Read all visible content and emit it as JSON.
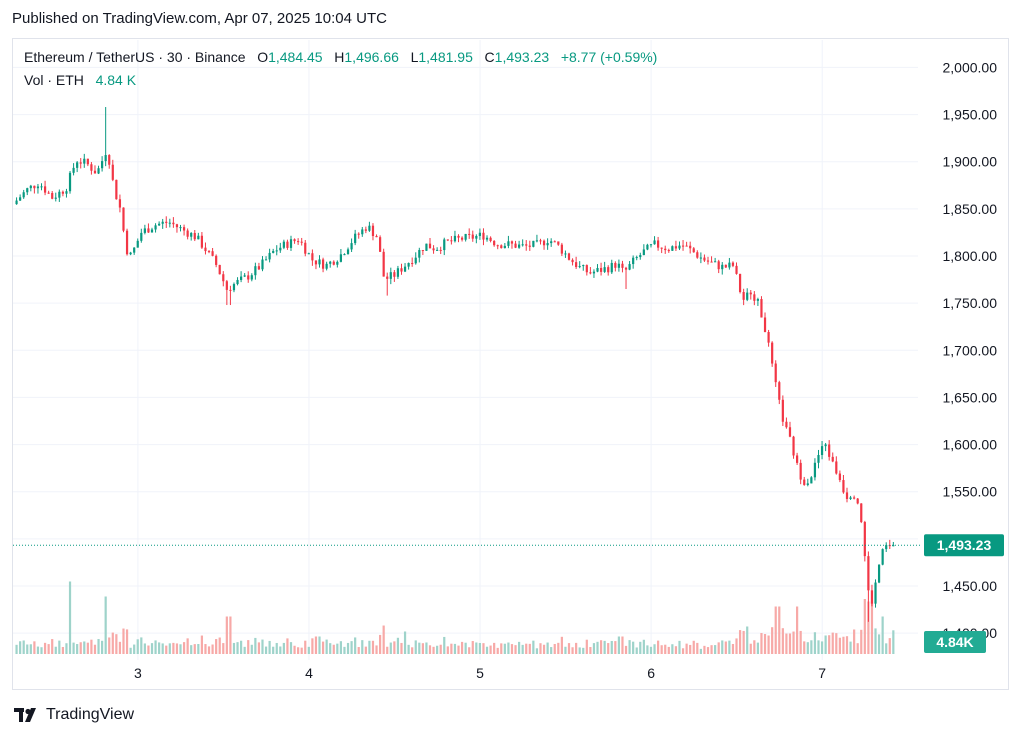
{
  "published": "Published on TradingView.com, Apr 07, 2025 10:04 UTC",
  "legend": {
    "symbol": "Ethereum / TetherUS · 30 · Binance",
    "o_label": "O",
    "o_value": "1,484.45",
    "h_label": "H",
    "h_value": "1,496.66",
    "l_label": "L",
    "l_value": "1,481.95",
    "c_label": "C",
    "c_value": "1,493.23",
    "change": "+8.77 (+0.59%)",
    "vol_label": "Vol · ETH",
    "vol_value": "4.84 K"
  },
  "footer": {
    "brand": "TradingView",
    "logo_icon": "tradingview-logo-icon"
  },
  "colors": {
    "up": "#089981",
    "down": "#f23645",
    "up_vol": "#9ed3ca",
    "down_vol": "#f7a9a7",
    "grid": "#f0f3fa",
    "text": "#131722"
  },
  "chart_data": {
    "type": "candlestick",
    "interval": "30",
    "y_ticks": [
      "2,000.00",
      "1,950.00",
      "1,900.00",
      "1,850.00",
      "1,800.00",
      "1,750.00",
      "1,700.00",
      "1,650.00",
      "1,600.00",
      "1,550.00",
      "1,500.00",
      "1,450.00",
      "1,400.00"
    ],
    "ylim": [
      1380,
      2010
    ],
    "x_ticks": [
      "3",
      "4",
      "5",
      "6",
      "7"
    ],
    "x_tick_day": [
      3,
      4,
      5,
      6,
      7
    ],
    "xlim_day": [
      2.27,
      7.56
    ],
    "last_price_label": "1,493.23",
    "last_price": 1493.23,
    "last_volume_label": "4.84K",
    "close_path": [
      [
        2.27,
        1855
      ],
      [
        2.35,
        1870
      ],
      [
        2.42,
        1878
      ],
      [
        2.5,
        1862
      ],
      [
        2.58,
        1872
      ],
      [
        2.64,
        1902
      ],
      [
        2.7,
        1898
      ],
      [
        2.76,
        1888
      ],
      [
        2.8,
        1905
      ],
      [
        2.82,
        1915
      ],
      [
        2.86,
        1872
      ],
      [
        2.9,
        1848
      ],
      [
        2.93,
        1808
      ],
      [
        2.96,
        1800
      ],
      [
        3.02,
        1825
      ],
      [
        3.1,
        1833
      ],
      [
        3.18,
        1836
      ],
      [
        3.26,
        1828
      ],
      [
        3.34,
        1820
      ],
      [
        3.4,
        1806
      ],
      [
        3.46,
        1790
      ],
      [
        3.52,
        1765
      ],
      [
        3.58,
        1772
      ],
      [
        3.64,
        1778
      ],
      [
        3.72,
        1790
      ],
      [
        3.8,
        1806
      ],
      [
        3.86,
        1812
      ],
      [
        3.94,
        1818
      ],
      [
        4.02,
        1796
      ],
      [
        4.1,
        1790
      ],
      [
        4.18,
        1800
      ],
      [
        4.26,
        1818
      ],
      [
        4.34,
        1832
      ],
      [
        4.4,
        1820
      ],
      [
        4.44,
        1775
      ],
      [
        4.5,
        1780
      ],
      [
        4.56,
        1790
      ],
      [
        4.62,
        1800
      ],
      [
        4.68,
        1812
      ],
      [
        4.74,
        1808
      ],
      [
        4.8,
        1814
      ],
      [
        4.88,
        1818
      ],
      [
        4.96,
        1820
      ],
      [
        5.02,
        1822
      ],
      [
        5.1,
        1813
      ],
      [
        5.18,
        1812
      ],
      [
        5.26,
        1810
      ],
      [
        5.34,
        1812
      ],
      [
        5.4,
        1818
      ],
      [
        5.46,
        1810
      ],
      [
        5.52,
        1798
      ],
      [
        5.58,
        1788
      ],
      [
        5.64,
        1782
      ],
      [
        5.7,
        1785
      ],
      [
        5.76,
        1788
      ],
      [
        5.8,
        1792
      ],
      [
        5.84,
        1782
      ],
      [
        5.9,
        1795
      ],
      [
        5.96,
        1805
      ],
      [
        6.02,
        1812
      ],
      [
        6.1,
        1808
      ],
      [
        6.18,
        1812
      ],
      [
        6.24,
        1805
      ],
      [
        6.3,
        1797
      ],
      [
        6.36,
        1792
      ],
      [
        6.42,
        1788
      ],
      [
        6.48,
        1790
      ],
      [
        6.54,
        1750
      ],
      [
        6.58,
        1765
      ],
      [
        6.62,
        1752
      ],
      [
        6.66,
        1730
      ],
      [
        6.7,
        1690
      ],
      [
        6.74,
        1650
      ],
      [
        6.78,
        1620
      ],
      [
        6.82,
        1600
      ],
      [
        6.86,
        1572
      ],
      [
        6.9,
        1560
      ],
      [
        6.94,
        1568
      ],
      [
        6.98,
        1590
      ],
      [
        7.02,
        1600
      ],
      [
        7.06,
        1580
      ],
      [
        7.1,
        1565
      ],
      [
        7.14,
        1545
      ],
      [
        7.18,
        1550
      ],
      [
        7.22,
        1535
      ],
      [
        7.25,
        1480
      ],
      [
        7.28,
        1425
      ],
      [
        7.31,
        1450
      ],
      [
        7.34,
        1480
      ],
      [
        7.37,
        1492
      ],
      [
        7.4,
        1490
      ],
      [
        7.42,
        1493.23
      ]
    ],
    "wick_spikes": [
      [
        2.82,
        1958,
        "up"
      ],
      [
        3.53,
        1748,
        "down"
      ],
      [
        4.45,
        1758,
        "down"
      ],
      [
        5.85,
        1765,
        "down"
      ],
      [
        7.27,
        1412,
        "down"
      ]
    ],
    "volume_spikes": [
      [
        2.6,
        1.45
      ],
      [
        2.82,
        1.15
      ],
      [
        3.53,
        0.75
      ],
      [
        4.05,
        0.35
      ],
      [
        4.56,
        0.45
      ],
      [
        5.82,
        0.35
      ],
      [
        6.56,
        0.55
      ],
      [
        6.74,
        0.95
      ],
      [
        6.86,
        0.95
      ],
      [
        7.25,
        1.1
      ],
      [
        7.28,
        1.05
      ],
      [
        7.36,
        0.75
      ]
    ]
  }
}
